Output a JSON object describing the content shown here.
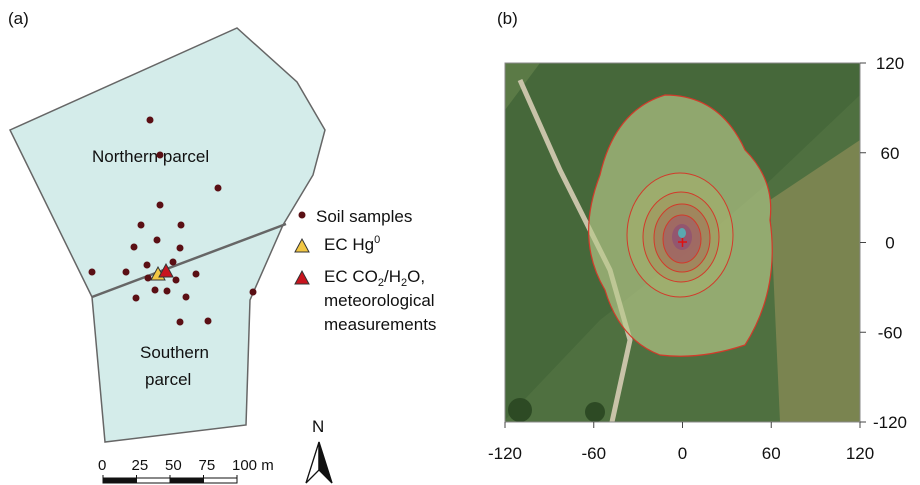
{
  "panel_a": {
    "label": "(a)",
    "northern": "Northern parcel",
    "southern": [
      "Southern",
      "parcel"
    ],
    "legend": {
      "soil": "Soil samples",
      "hg": [
        "EC Hg",
        "0"
      ],
      "co2": [
        "EC CO",
        "2",
        "/H",
        "2",
        "O,"
      ],
      "co2_lines": [
        "meteorological",
        "measurements"
      ]
    },
    "scale_bar": {
      "ticks": [
        0,
        25,
        50,
        75,
        {
          "value": 100,
          "label": "100 m"
        }
      ]
    },
    "north": "N"
  },
  "panel_b": {
    "label": "(b)",
    "xlim": [
      -120,
      120
    ],
    "ylim": [
      -120,
      120
    ],
    "xticks": [
      -120,
      -60,
      0,
      60,
      120
    ],
    "yticks": [
      120,
      60,
      0,
      -60,
      -120
    ]
  }
}
